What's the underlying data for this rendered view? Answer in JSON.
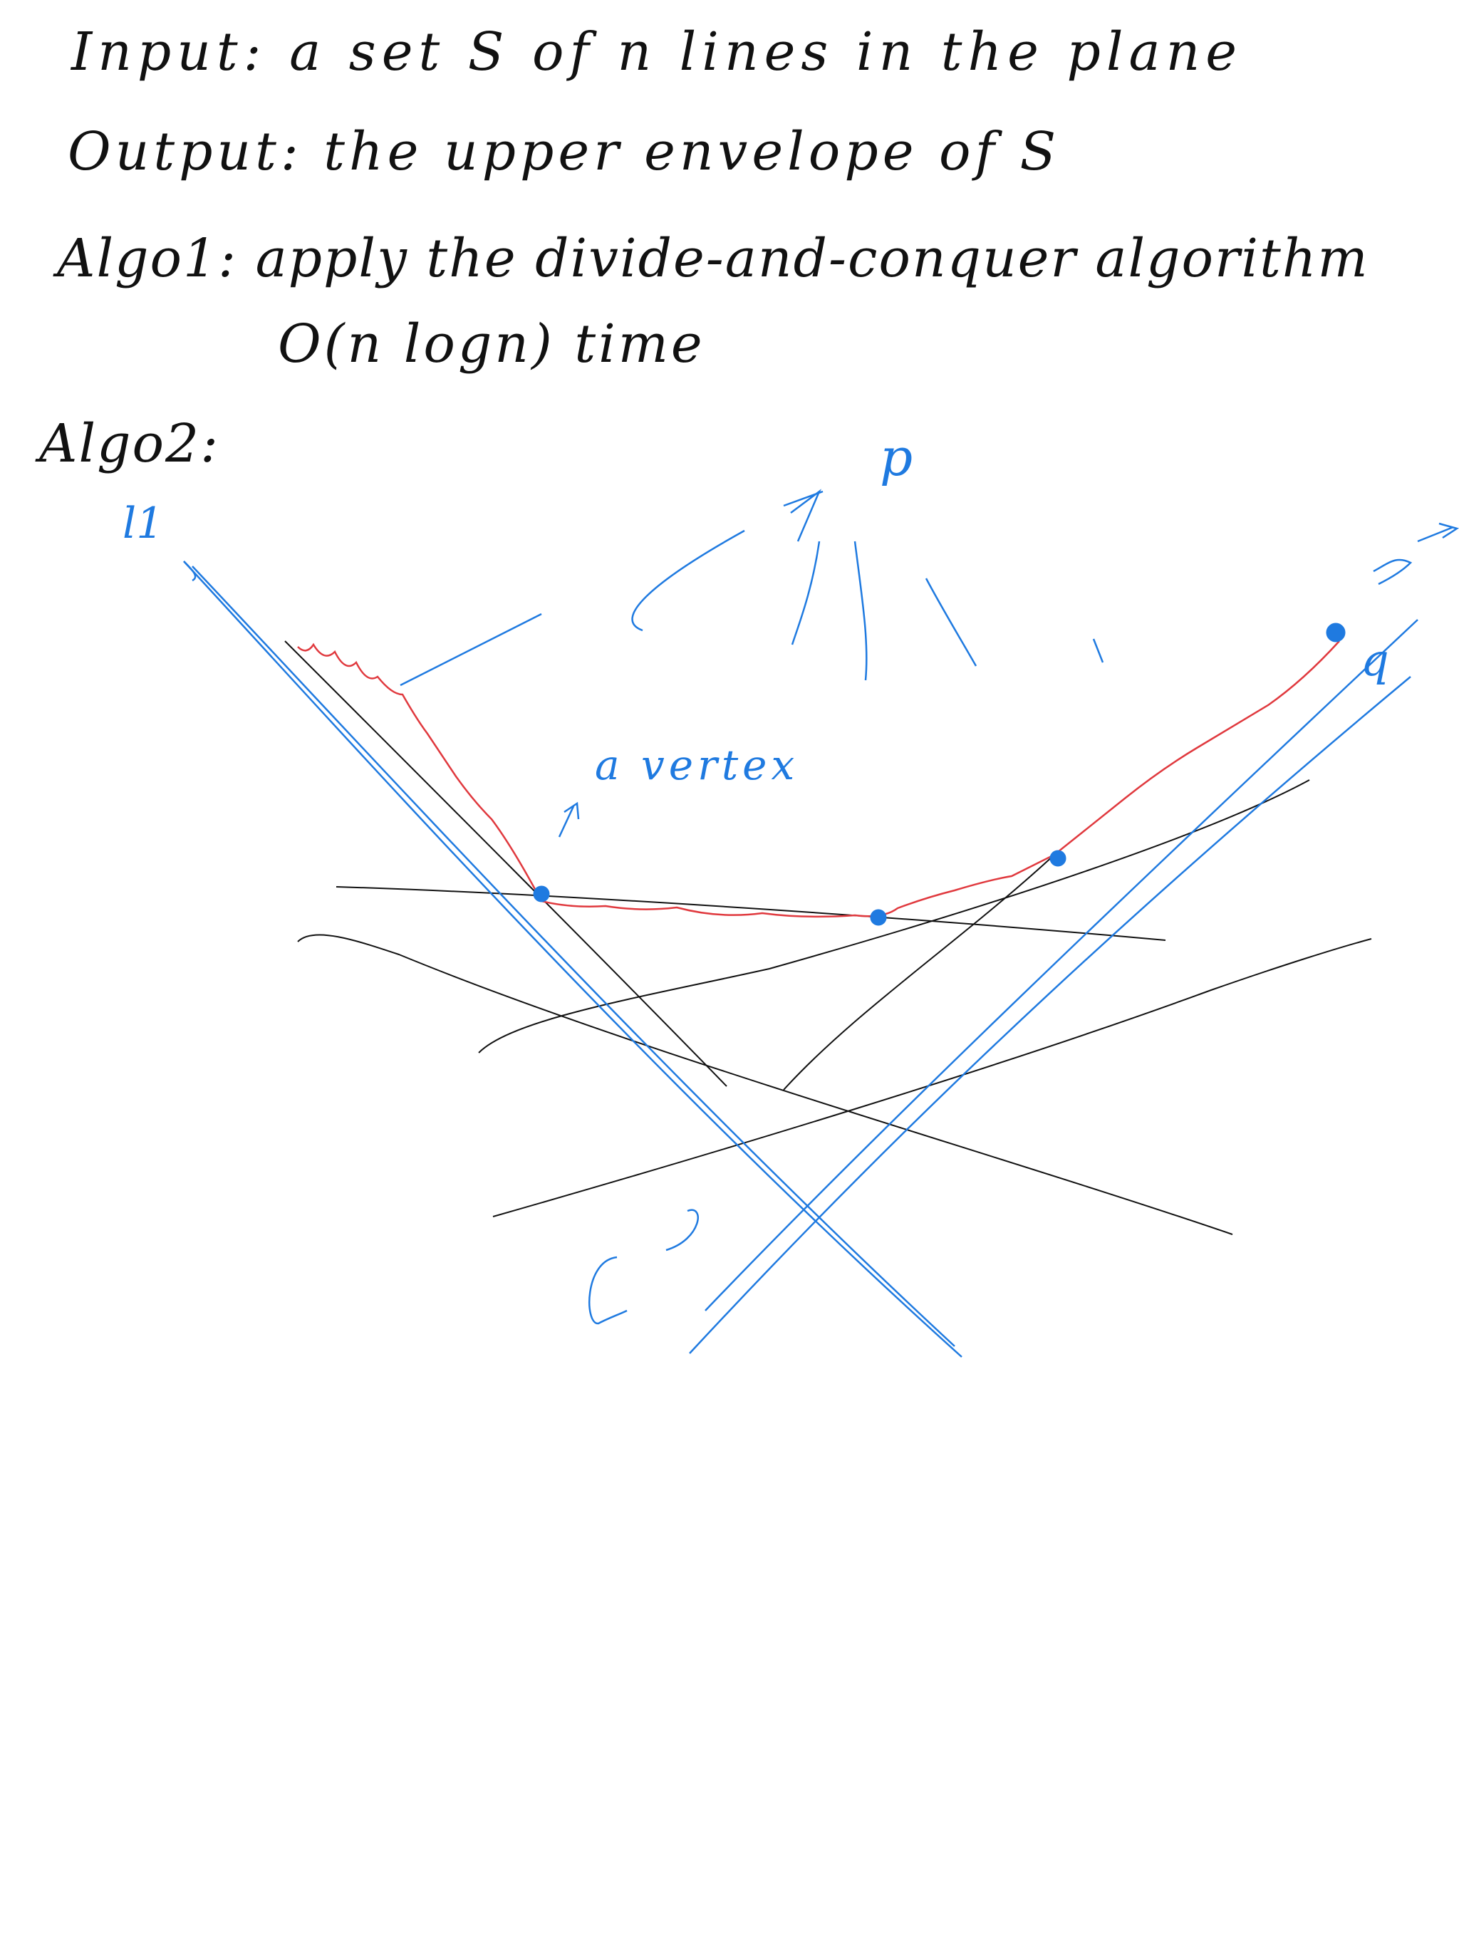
{
  "notes": {
    "line1": "Input: a set S of n lines in the plane",
    "line2": "Output: the upper envelope of S",
    "line3": "Algo1: apply the divide-and-conquer algorithm",
    "line4": "O(n logn) time",
    "line5": "Algo2:"
  },
  "labels": {
    "l1": "l1",
    "p": "p",
    "q": "q",
    "vertex": "a vertex"
  },
  "colors": {
    "ink": "#111111",
    "blue": "#1f7ae0",
    "red": "#e0393e"
  }
}
